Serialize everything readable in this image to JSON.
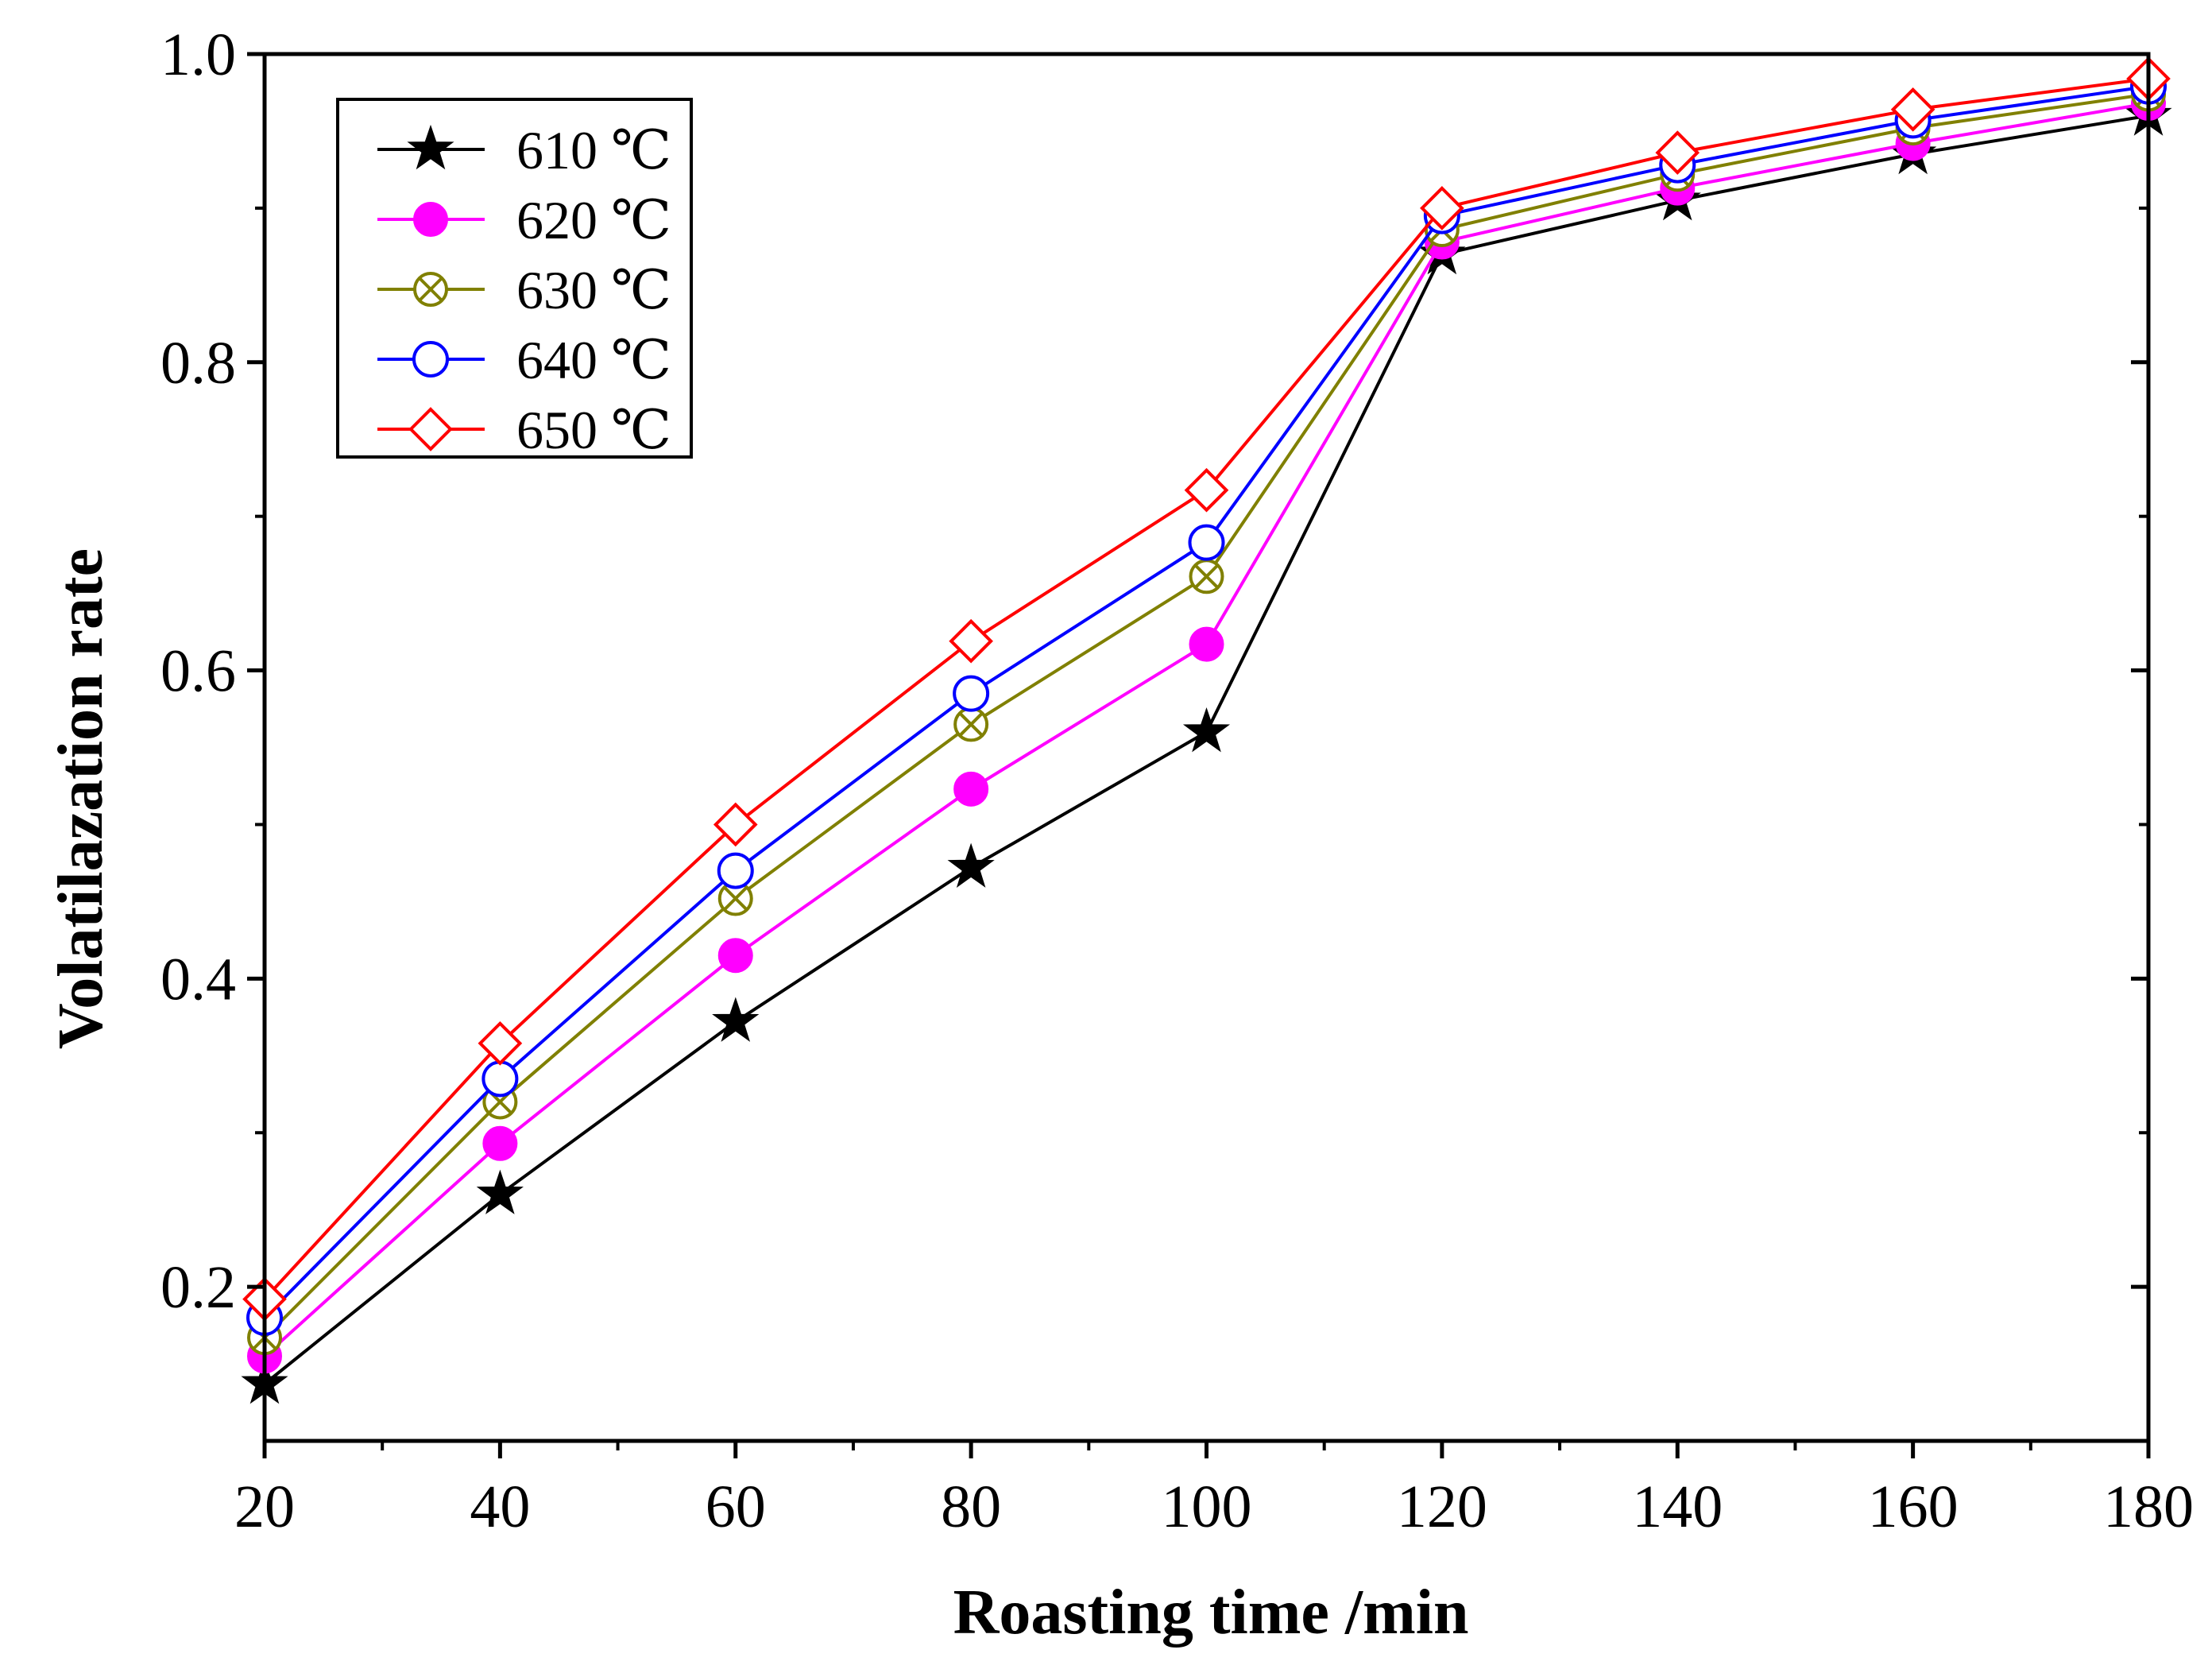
{
  "chart_data": {
    "type": "line",
    "title": "",
    "xlabel": "Roasting time /min",
    "ylabel": "Volatilazation rate",
    "xlim": [
      20,
      180
    ],
    "ylim": [
      0.1,
      1.0
    ],
    "x": [
      20,
      40,
      60,
      80,
      100,
      120,
      140,
      160,
      180
    ],
    "x_ticks": [
      20,
      40,
      60,
      80,
      100,
      120,
      140,
      160,
      180
    ],
    "x_tick_labels": [
      "20",
      "40",
      "60",
      "80",
      "100",
      "120",
      "140",
      "160",
      "180"
    ],
    "y_ticks": [
      0.2,
      0.4,
      0.6,
      0.8,
      1.0
    ],
    "y_tick_labels": [
      "0.2",
      "0.4",
      "0.6",
      "0.8",
      "1.0"
    ],
    "grid": false,
    "legend_position": "top-left",
    "series": [
      {
        "name": "610 ℃",
        "color": "#000000",
        "marker": "star",
        "values": [
          0.137,
          0.26,
          0.372,
          0.472,
          0.56,
          0.87,
          0.905,
          0.935,
          0.96
        ]
      },
      {
        "name": "620 ℃",
        "color": "#ff00ff",
        "marker": "filled-circle",
        "values": [
          0.155,
          0.293,
          0.415,
          0.523,
          0.617,
          0.878,
          0.913,
          0.942,
          0.968
        ]
      },
      {
        "name": "630 ℃",
        "color": "#808000",
        "marker": "crossed-circle",
        "values": [
          0.167,
          0.32,
          0.452,
          0.565,
          0.661,
          0.886,
          0.922,
          0.952,
          0.974
        ]
      },
      {
        "name": "640 ℃",
        "color": "#0000ff",
        "marker": "open-circle",
        "values": [
          0.18,
          0.335,
          0.47,
          0.585,
          0.683,
          0.895,
          0.928,
          0.957,
          0.979
        ]
      },
      {
        "name": "650 ℃",
        "color": "#ff0000",
        "marker": "open-diamond",
        "values": [
          0.192,
          0.358,
          0.5,
          0.619,
          0.717,
          0.9,
          0.936,
          0.964,
          0.984
        ]
      }
    ]
  }
}
